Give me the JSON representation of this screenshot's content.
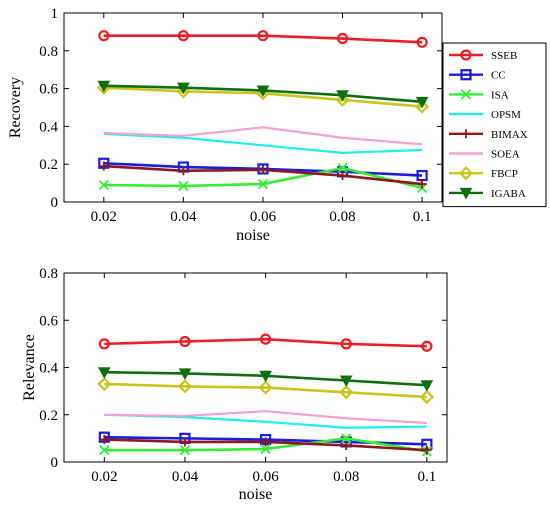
{
  "chart_data": [
    {
      "type": "line",
      "xlabel": "noise",
      "ylabel": "Recovery",
      "x": [
        0.02,
        0.04,
        0.06,
        0.08,
        0.1
      ],
      "x_tick_labels": [
        "0.02",
        "0.04",
        "0.06",
        "0.08",
        "0.1"
      ],
      "xlim": [
        0.01,
        0.105
      ],
      "ylim": [
        0,
        1
      ],
      "y_ticks": [
        0,
        0.2,
        0.4,
        0.6,
        0.8,
        1
      ],
      "y_tick_labels": [
        "0",
        "0.2",
        "0.4",
        "0.6",
        "0.8",
        "1"
      ],
      "grid": false,
      "legend_position": "right, outside",
      "series": [
        {
          "name": "SSEB",
          "color": "#ee1c24",
          "marker": "circle",
          "values": [
            0.88,
            0.88,
            0.88,
            0.865,
            0.845
          ]
        },
        {
          "name": "CC",
          "color": "#1c1ce0",
          "marker": "square",
          "values": [
            0.205,
            0.185,
            0.175,
            0.16,
            0.14
          ]
        },
        {
          "name": "ISA",
          "color": "#33ee33",
          "marker": "x",
          "values": [
            0.09,
            0.085,
            0.095,
            0.18,
            0.075
          ]
        },
        {
          "name": "OPSM",
          "color": "#20eeee",
          "marker": "none",
          "values": [
            0.36,
            0.34,
            0.3,
            0.26,
            0.275
          ]
        },
        {
          "name": "BIMAX",
          "color": "#8b1a1a",
          "marker": "plus",
          "values": [
            0.19,
            0.165,
            0.17,
            0.14,
            0.095
          ]
        },
        {
          "name": "SOEA",
          "color": "#f5a0cf",
          "marker": "none",
          "values": [
            0.365,
            0.35,
            0.395,
            0.34,
            0.305
          ]
        },
        {
          "name": "FBCP",
          "color": "#c9c41e",
          "marker": "diamond",
          "values": [
            0.605,
            0.585,
            0.575,
            0.54,
            0.505
          ]
        },
        {
          "name": "IGABA",
          "color": "#0f6e0f",
          "marker": "triangle-down",
          "values": [
            0.615,
            0.605,
            0.59,
            0.565,
            0.53
          ]
        }
      ]
    },
    {
      "type": "line",
      "xlabel": "noise",
      "ylabel": "Relevance",
      "x": [
        0.02,
        0.04,
        0.06,
        0.08,
        0.1
      ],
      "x_tick_labels": [
        "0.02",
        "0.04",
        "0.06",
        "0.08",
        "0.1"
      ],
      "xlim": [
        0.01,
        0.105
      ],
      "ylim": [
        0,
        0.8
      ],
      "y_ticks": [
        0,
        0.2,
        0.4,
        0.6,
        0.8
      ],
      "y_tick_labels": [
        "0",
        "0.2",
        "0.4",
        "0.6",
        "0.8"
      ],
      "grid": false,
      "series": [
        {
          "color": "#ee1c24",
          "marker": "circle",
          "values": [
            0.5,
            0.51,
            0.52,
            0.5,
            0.49
          ]
        },
        {
          "color": "#1c1ce0",
          "marker": "square",
          "values": [
            0.105,
            0.1,
            0.095,
            0.085,
            0.075
          ]
        },
        {
          "color": "#33ee33",
          "marker": "x",
          "values": [
            0.05,
            0.05,
            0.055,
            0.1,
            0.045
          ]
        },
        {
          "color": "#20eeee",
          "marker": "none",
          "values": [
            0.2,
            0.19,
            0.17,
            0.145,
            0.15
          ]
        },
        {
          "color": "#8b1a1a",
          "marker": "plus",
          "values": [
            0.095,
            0.085,
            0.085,
            0.07,
            0.05
          ]
        },
        {
          "color": "#f5a0cf",
          "marker": "none",
          "values": [
            0.2,
            0.195,
            0.215,
            0.185,
            0.165
          ]
        },
        {
          "color": "#c9c41e",
          "marker": "diamond",
          "values": [
            0.33,
            0.32,
            0.315,
            0.295,
            0.275
          ]
        },
        {
          "color": "#0f6e0f",
          "marker": "triangle-down",
          "values": [
            0.38,
            0.375,
            0.365,
            0.345,
            0.325
          ]
        }
      ]
    }
  ]
}
